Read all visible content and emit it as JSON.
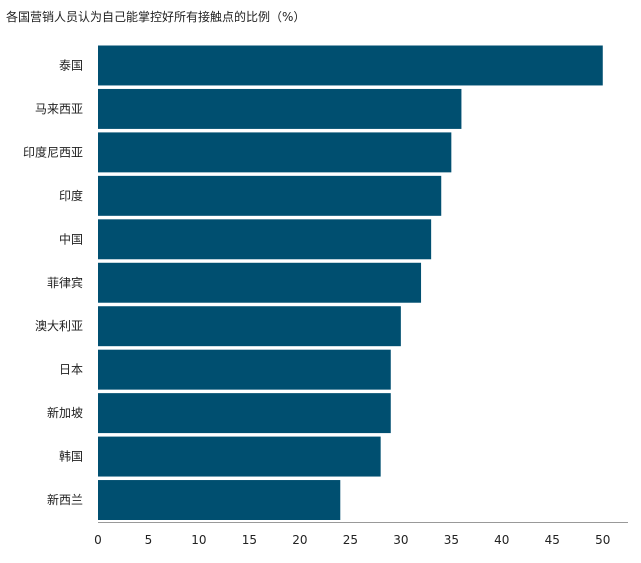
{
  "chart_data": {
    "type": "bar",
    "orientation": "horizontal",
    "title": "各国营销人员认为自己能掌控好所有接触点的比例（%）",
    "categories": [
      "泰国",
      "马来西亚",
      "印度尼西亚",
      "印度",
      "中国",
      "菲律宾",
      "澳大利亚",
      "日本",
      "新加坡",
      "韩国",
      "新西兰"
    ],
    "values": [
      50,
      36,
      35,
      34,
      33,
      32,
      30,
      29,
      29,
      28,
      24
    ],
    "xlim": [
      0,
      52.5
    ],
    "xticks": [
      0,
      5,
      10,
      15,
      20,
      25,
      30,
      35,
      40,
      45,
      50
    ],
    "xlabel": "",
    "ylabel": "",
    "grid": false,
    "bar_color": "#004f70"
  }
}
